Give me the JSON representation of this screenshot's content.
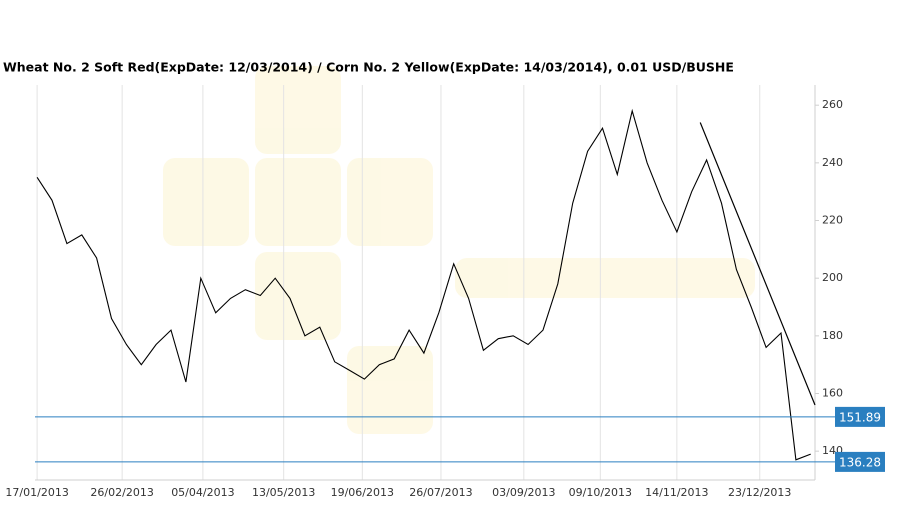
{
  "chart_data": {
    "type": "line",
    "title": "Wheat  No. 2 Soft Red(ExpDate: 12/03/2014) / Corn  No. 2 Yellow(ExpDate: 14/03/2014), 0.01 USD/BUSHE",
    "x": [
      "17/01/2013",
      "24/01/2013",
      "31/01/2013",
      "07/02/2013",
      "14/02/2013",
      "21/02/2013",
      "28/02/2013",
      "07/03/2013",
      "14/03/2013",
      "21/03/2013",
      "28/03/2013",
      "04/04/2013",
      "11/04/2013",
      "18/04/2013",
      "25/04/2013",
      "02/05/2013",
      "09/05/2013",
      "16/05/2013",
      "23/05/2013",
      "30/05/2013",
      "06/06/2013",
      "13/06/2013",
      "20/06/2013",
      "27/06/2013",
      "04/07/2013",
      "11/07/2013",
      "18/07/2013",
      "25/07/2013",
      "01/08/2013",
      "08/08/2013",
      "15/08/2013",
      "22/08/2013",
      "29/08/2013",
      "05/09/2013",
      "12/09/2013",
      "19/09/2013",
      "26/09/2013",
      "03/10/2013",
      "10/10/2013",
      "17/10/2013",
      "24/10/2013",
      "31/10/2013",
      "07/11/2013",
      "14/11/2013",
      "21/11/2013",
      "28/11/2013",
      "05/12/2013",
      "12/12/2013",
      "19/12/2013",
      "26/12/2013",
      "02/01/2014",
      "09/01/2014",
      "16/01/2014"
    ],
    "values": [
      235,
      227,
      212,
      215,
      207,
      186,
      177,
      170,
      177,
      182,
      164,
      200,
      188,
      193,
      196,
      194,
      200,
      193,
      180,
      183,
      171,
      168,
      165,
      170,
      172,
      182,
      174,
      188,
      205,
      193,
      175,
      179,
      180,
      177,
      182,
      198,
      226,
      244,
      252,
      236,
      258,
      240,
      227,
      216,
      230,
      241,
      226,
      203,
      190,
      176,
      181,
      137,
      139
    ],
    "color": "#000000",
    "xlim": [
      "16/01/2013",
      "18/01/2014"
    ],
    "xticks": [
      "17/01/2013",
      "26/02/2013",
      "05/04/2013",
      "13/05/2013",
      "19/06/2013",
      "26/07/2013",
      "03/09/2013",
      "09/10/2013",
      "14/11/2013",
      "23/12/2013"
    ],
    "ylim": [
      130,
      267
    ],
    "yticks": [
      140,
      160,
      180,
      200,
      220,
      240,
      260
    ],
    "grid": "x",
    "price_lines": [
      151.89,
      136.28
    ],
    "price_line_color": "#2a7fc0",
    "trendline": {
      "x": [
        "25/11/2013",
        "18/01/2014"
      ],
      "y": [
        254,
        156
      ]
    }
  }
}
